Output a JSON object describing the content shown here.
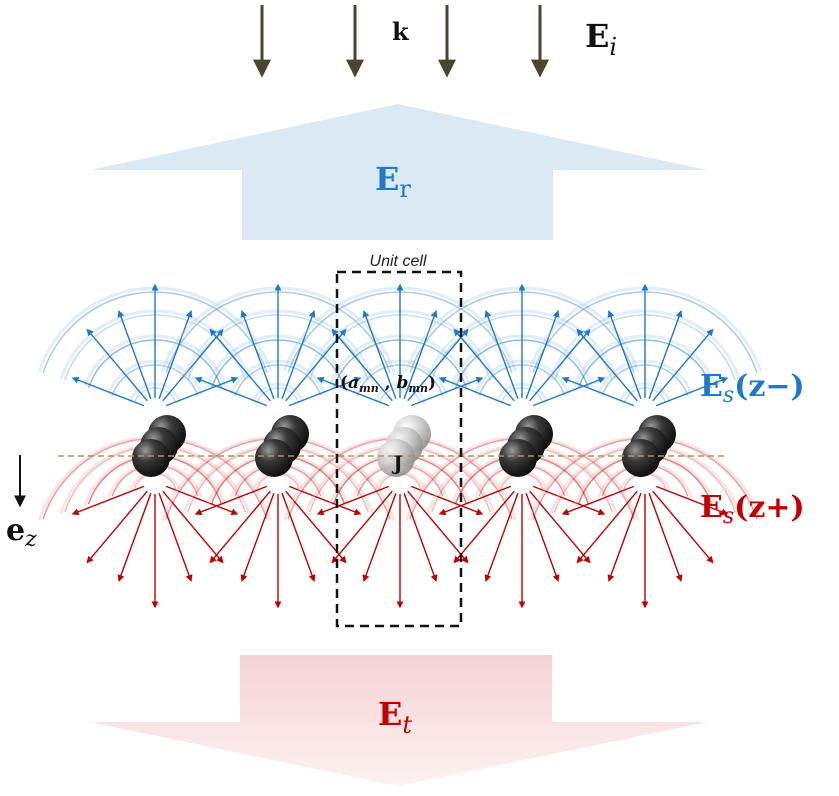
{
  "labels": {
    "wave_vector": "k",
    "incident_field": {
      "base": "E",
      "sub": "i"
    },
    "reflected_field": {
      "base": "E",
      "sub": "r"
    },
    "transmitted_field": {
      "base": "E",
      "sub": "t"
    },
    "scattered_backward": {
      "base": "E",
      "sub": "s",
      "arg": "(z−)"
    },
    "scattered_forward": {
      "base": "E",
      "sub": "s",
      "arg": "(z+)"
    },
    "unit_cell": "Unit cell",
    "coefficients": {
      "a": "a",
      "a_sub": "mn",
      "b": "b",
      "b_sub": "mn"
    },
    "current_source": "J",
    "unit_vector": {
      "base": "e",
      "sub": "z"
    }
  },
  "colors": {
    "incident_arrow": "#4a4530",
    "reflected": "#1f78c8",
    "reflected_fill": "#dbe9f4",
    "transmitted": "#c00000",
    "transmitted_fill": "#f8dcdc",
    "dark_sphere": "#2b2b2b",
    "highlight_sphere": "#bdbdbd",
    "dashed_line": "#a89a60"
  },
  "icons": {
    "scatterer": "sphere-cluster-icon",
    "highlighted_scatterer": "highlighted-sphere-cluster-icon"
  },
  "scatterer_count": 5,
  "highlighted_index": 2
}
